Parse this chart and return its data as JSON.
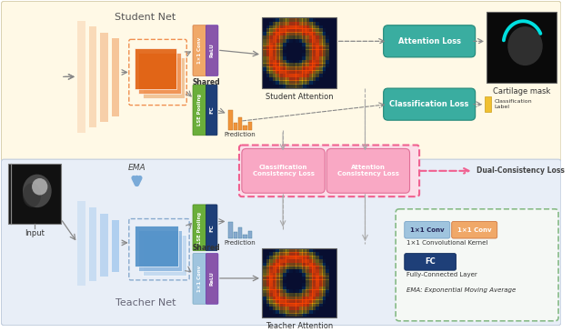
{
  "bg_top_color": "#FFF9E6",
  "bg_bot_color": "#E8EEF7",
  "student_net_label": "Student Net",
  "teacher_net_label": "Teacher Net",
  "ema_label": "EMA",
  "input_label": "Input",
  "shared_label": "Shared",
  "prediction_label": "Prediction",
  "student_attention_label": "Student Attention",
  "cartilage_mask_label": "Cartilage mask",
  "teacher_attention_label": "Teacher Attention",
  "attention_loss_label": "Attention Loss",
  "classification_loss_label": "Classification Loss",
  "classification_label_text": "Classification\nLabel",
  "class_consistency_label": "Classification\nConsistency Loss",
  "attention_consistency_label": "Attention\nConsistency Loss",
  "dual_consistency_label": "Dual-Consistency Loss",
  "legend_1x1_conv_blue": "1×1 Conv",
  "legend_1x1_conv_orange": "1×1 Conv",
  "legend_1x1_text": "1×1 Convolutional Kernel",
  "legend_fc_label": "FC",
  "legend_fc_text": "Fully-Connected Layer",
  "legend_ema_text": "EMA: Exponential Moving Average",
  "conv1x1_student_label": "1×1 Conv",
  "relu_student_label": "ReLU",
  "conv1x1_teacher_label": "1×1 Conv",
  "relu_teacher_label": "ReLU",
  "lse_label": "LSE Pooling",
  "fc_label": "FC",
  "teal_color": "#3AADA0",
  "pink_fill": "#F9A8C4",
  "pink_border": "#F06090",
  "orange_bar_color": "#F0943A",
  "orange_bar_light": "#F5BF90",
  "blue_bar_color": "#88AACE",
  "blue_bar_light": "#AACCEE",
  "orange_conv_color": "#F0A868",
  "purple_relu_color": "#8855AA",
  "green_lse_color": "#6AAE3A",
  "darkblue_fc_color": "#1E3F78",
  "blue_conv_light": "#9FC4DE",
  "arrow_color": "#888888",
  "arrow_color_blue": "#6699CC",
  "yellow_label_color": "#F0C030",
  "dashed_gray": "#AAAAAA"
}
